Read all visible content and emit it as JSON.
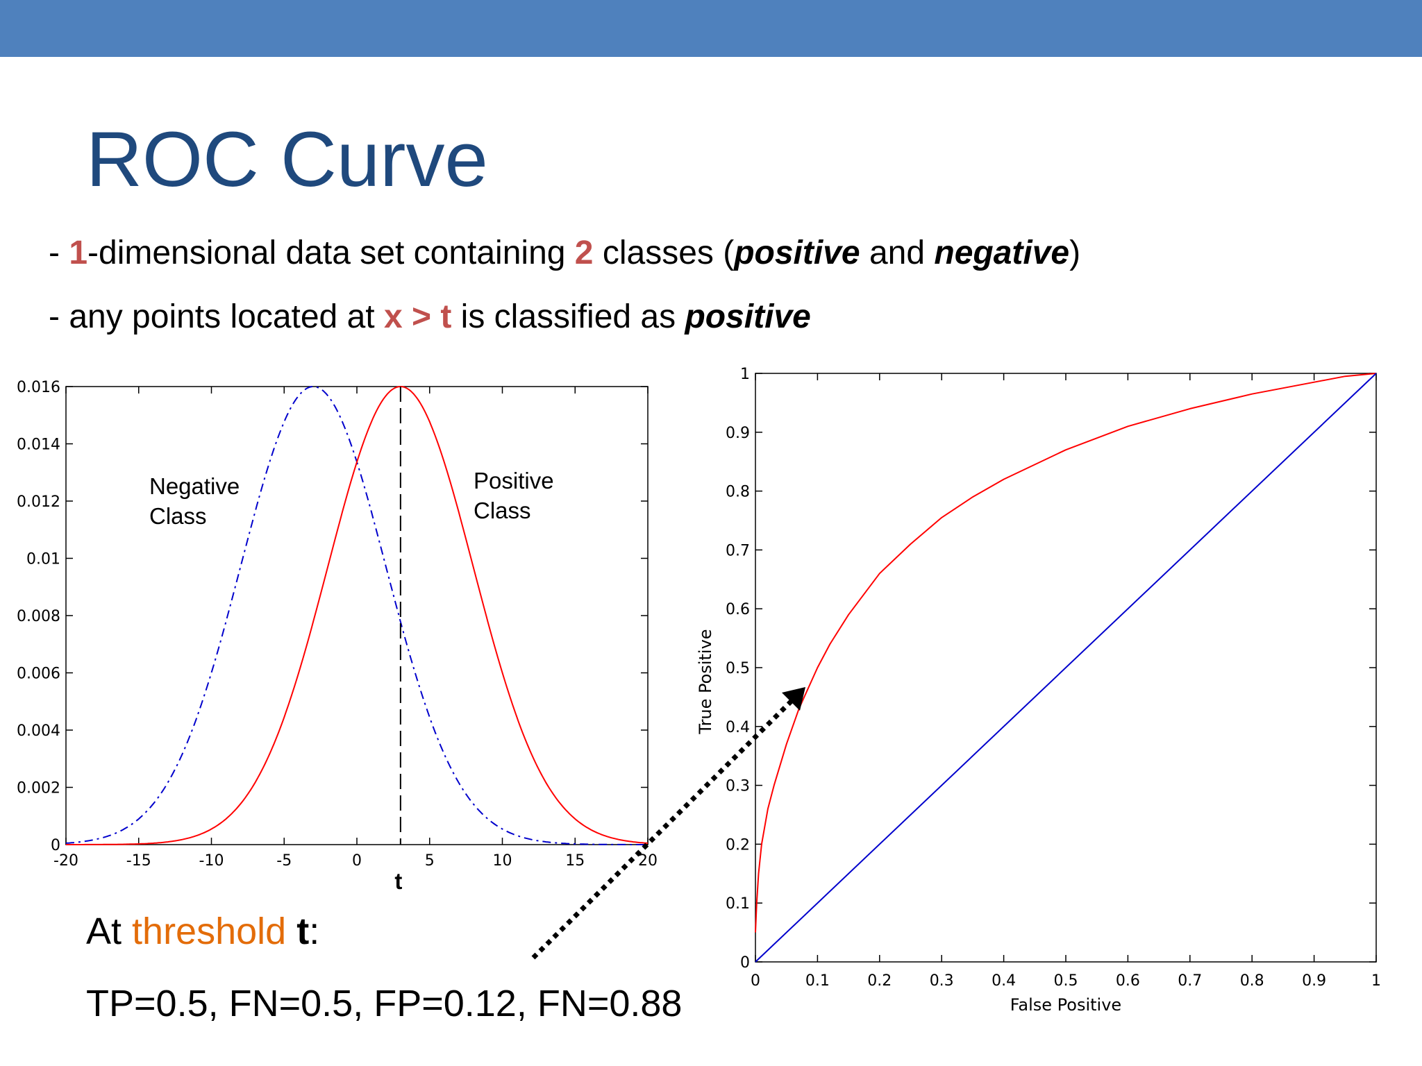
{
  "colors": {
    "top_bar": "#4f81bd",
    "title": "#1f497d",
    "highlight": "#c0504d",
    "threshold_word": "#e36c09",
    "positive_curve": "#ff0000",
    "negative_curve": "#0000cc",
    "roc_curve": "#ff0000",
    "diagonal": "#0000cc",
    "arrow": "#000000"
  },
  "slide": {
    "title": "ROC Curve",
    "bullet1": {
      "p1": "- ",
      "h1": "1",
      "p2": "-dimensional data set containing ",
      "h2": "2",
      "p3": " classes (",
      "e1": "positive",
      "p4": " and ",
      "e2": "negative",
      "p5": ")"
    },
    "bullet2": {
      "p1": "- any points located at ",
      "h1": "x > t",
      "p2": " is classified as ",
      "e1": "positive"
    },
    "threshold": {
      "p1": "At ",
      "word": "threshold",
      "p2": " ",
      "t": "t",
      "p3": ":"
    },
    "metrics": "TP=0.5, FN=0.5, FP=0.12, FN=0.88"
  },
  "chart_data": [
    {
      "type": "line",
      "x_range": [
        -20,
        20
      ],
      "ylim": [
        0,
        0.016
      ],
      "x_ticks": [
        -20,
        -15,
        -10,
        -5,
        0,
        5,
        10,
        15,
        20
      ],
      "x_tick_labels": [
        "-20",
        "-15",
        "-10",
        "-5",
        "0",
        "5",
        "10",
        "15",
        "20"
      ],
      "y_ticks": [
        0,
        0.002,
        0.004,
        0.006,
        0.008,
        0.01,
        0.012,
        0.014,
        0.016
      ],
      "y_tick_labels": [
        "0",
        "0.002",
        "0.004",
        "0.006",
        "0.008",
        "0.01",
        "0.012",
        "0.014",
        "0.016"
      ],
      "series": [
        {
          "label_line1": "Negative",
          "label_line2": "Class",
          "style": "dash-dot",
          "color": "#0000cc",
          "distribution": "gaussian",
          "mean": -3,
          "std": 5,
          "peak": 0.016
        },
        {
          "label_line1": "Positive",
          "label_line2": "Class",
          "style": "solid",
          "color": "#ff0000",
          "distribution": "gaussian",
          "mean": 3,
          "std": 5,
          "peak": 0.016
        }
      ],
      "threshold": {
        "x": 3,
        "label": "t",
        "style": "dashed"
      },
      "grid": false
    },
    {
      "type": "line",
      "xlabel": "False Positive",
      "ylabel": "True Positive",
      "xlim": [
        0,
        1
      ],
      "ylim": [
        0,
        1
      ],
      "x_ticks": [
        0,
        0.1,
        0.2,
        0.3,
        0.4,
        0.5,
        0.6,
        0.7,
        0.8,
        0.9,
        1
      ],
      "x_tick_labels": [
        "0",
        "0.1",
        "0.2",
        "0.3",
        "0.4",
        "0.5",
        "0.6",
        "0.7",
        "0.8",
        "0.9",
        "1"
      ],
      "y_ticks": [
        0,
        0.1,
        0.2,
        0.3,
        0.4,
        0.5,
        0.6,
        0.7,
        0.8,
        0.9,
        1
      ],
      "y_tick_labels": [
        "0",
        "0.1",
        "0.2",
        "0.3",
        "0.4",
        "0.5",
        "0.6",
        "0.7",
        "0.8",
        "0.9",
        "1"
      ],
      "series": [
        {
          "color": "#ff0000",
          "x": [
            0,
            0.002,
            0.005,
            0.01,
            0.02,
            0.03,
            0.05,
            0.07,
            0.1,
            0.12,
            0.15,
            0.2,
            0.25,
            0.3,
            0.35,
            0.4,
            0.5,
            0.6,
            0.7,
            0.8,
            0.9,
            0.95,
            1
          ],
          "y": [
            0.05,
            0.1,
            0.15,
            0.2,
            0.26,
            0.3,
            0.37,
            0.43,
            0.5,
            0.54,
            0.59,
            0.66,
            0.71,
            0.755,
            0.79,
            0.82,
            0.87,
            0.91,
            0.94,
            0.965,
            0.985,
            0.995,
            1
          ]
        },
        {
          "color": "#0000cc",
          "x": [
            0,
            1
          ],
          "y": [
            0,
            1
          ]
        }
      ],
      "grid": false
    }
  ]
}
